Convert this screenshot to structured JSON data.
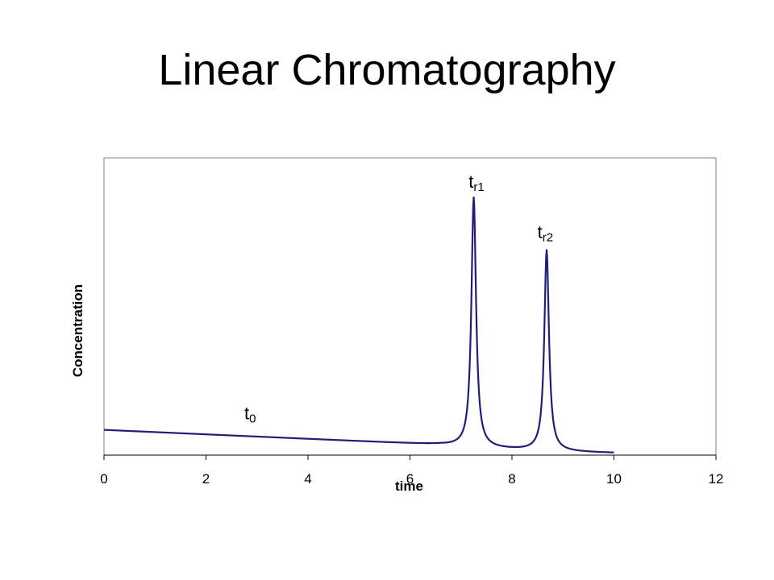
{
  "slide": {
    "title": "Linear Chromatography"
  },
  "colors": {
    "series": "#1f1f7a",
    "frame": "#808080",
    "background": "#ffffff"
  },
  "chart_data": {
    "type": "line",
    "title": "",
    "xlabel": "time",
    "ylabel": "Concentration",
    "xlim": [
      0,
      12
    ],
    "ylim": [
      0,
      1
    ],
    "x_ticks": [
      0,
      2,
      4,
      6,
      8,
      10,
      12
    ],
    "grid": false,
    "legend": "none",
    "series": [
      {
        "baseline": {
          "x": [
            0,
            6.6
          ],
          "y": [
            0.085,
            0.035
          ]
        },
        "peaks": [
          {
            "label_base": "t",
            "label_sub": "r1",
            "center": 7.25,
            "height": 0.84
          },
          {
            "label_base": "t",
            "label_sub": "r2",
            "center": 8.68,
            "height": 0.675
          }
        ],
        "x_end": 10.0
      }
    ],
    "annotations": [
      {
        "base": "t",
        "sub": "0",
        "x": 2.75,
        "y": 0.12
      },
      {
        "base": "t",
        "sub": "r1",
        "x": 7.15,
        "y": 0.9
      },
      {
        "base": "t",
        "sub": "r2",
        "x": 8.5,
        "y": 0.73
      }
    ]
  }
}
